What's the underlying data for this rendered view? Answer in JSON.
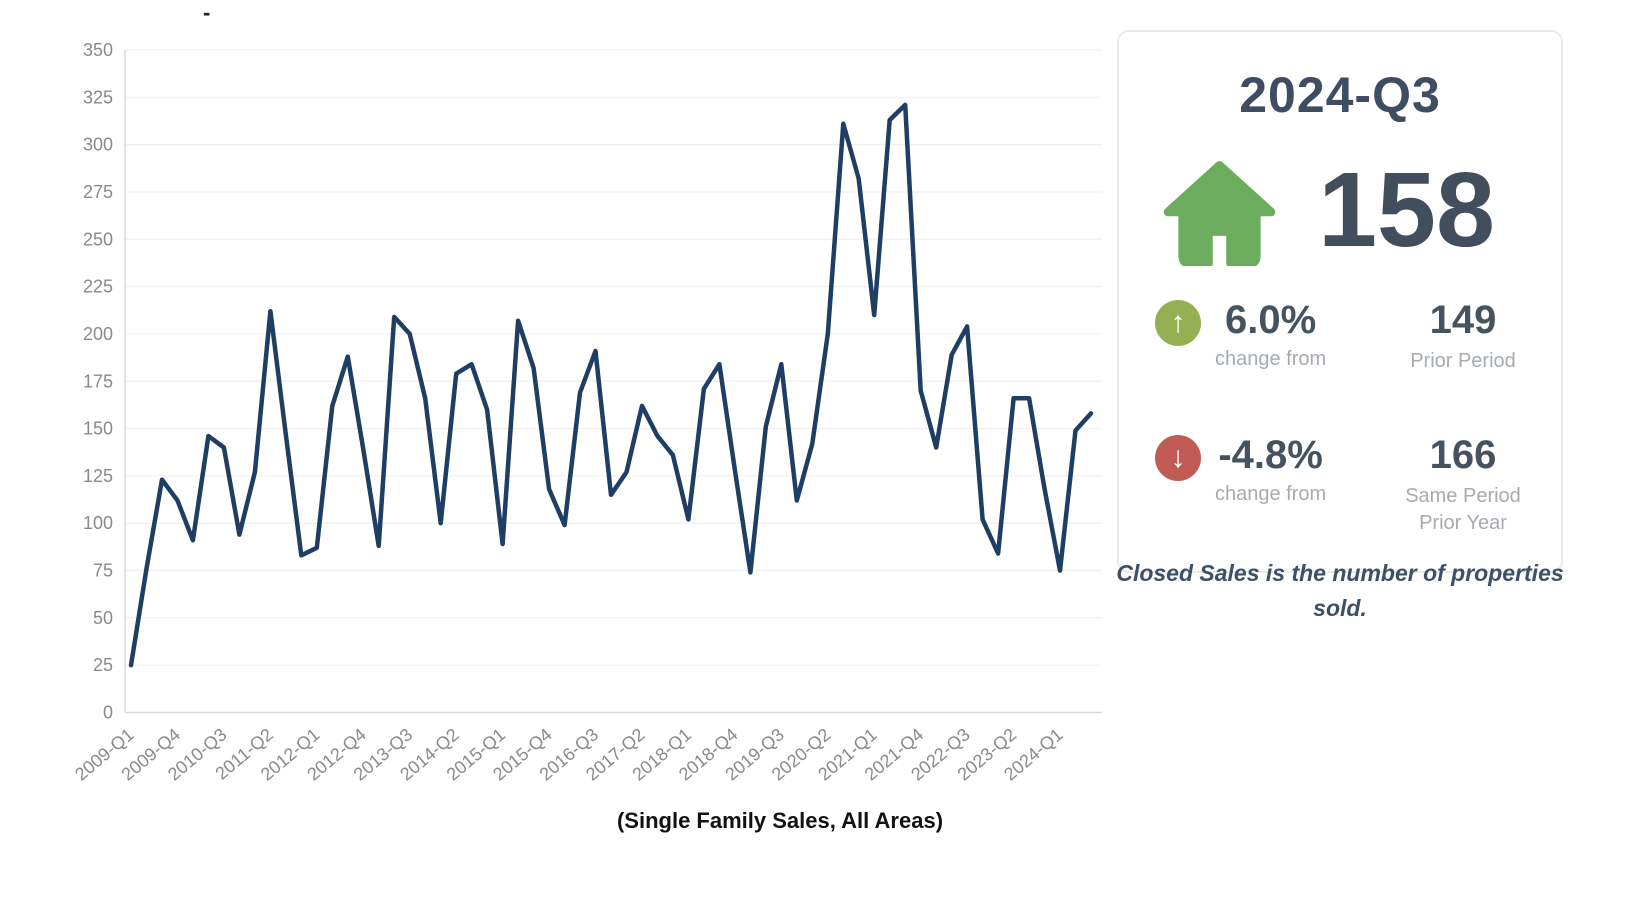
{
  "header": {
    "partial_title": "-"
  },
  "chart_data": {
    "type": "line",
    "title": "",
    "xlabel": "",
    "ylabel": "",
    "ylim": [
      0,
      350
    ],
    "y_ticks": [
      0,
      25,
      50,
      75,
      100,
      125,
      150,
      175,
      200,
      225,
      250,
      275,
      300,
      325,
      350
    ],
    "grid": true,
    "legend_position": "none",
    "line_color": "#1e3f63",
    "tick_color": "#8a8a8a",
    "label_every": 3,
    "categories": [
      "2009-Q1",
      "2009-Q2",
      "2009-Q3",
      "2009-Q4",
      "2010-Q1",
      "2010-Q2",
      "2010-Q3",
      "2010-Q4",
      "2011-Q1",
      "2011-Q2",
      "2011-Q3",
      "2011-Q4",
      "2012-Q1",
      "2012-Q2",
      "2012-Q3",
      "2012-Q4",
      "2013-Q1",
      "2013-Q2",
      "2013-Q3",
      "2013-Q4",
      "2014-Q1",
      "2014-Q2",
      "2014-Q3",
      "2014-Q4",
      "2015-Q1",
      "2015-Q2",
      "2015-Q3",
      "2015-Q4",
      "2016-Q1",
      "2016-Q2",
      "2016-Q3",
      "2016-Q4",
      "2017-Q1",
      "2017-Q2",
      "2017-Q3",
      "2017-Q4",
      "2018-Q1",
      "2018-Q2",
      "2018-Q3",
      "2018-Q4",
      "2019-Q1",
      "2019-Q2",
      "2019-Q3",
      "2019-Q4",
      "2020-Q1",
      "2020-Q2",
      "2020-Q3",
      "2020-Q4",
      "2021-Q1",
      "2021-Q2",
      "2021-Q3",
      "2021-Q4",
      "2022-Q1",
      "2022-Q2",
      "2022-Q3",
      "2022-Q4",
      "2023-Q1",
      "2023-Q2",
      "2023-Q3",
      "2023-Q4",
      "2024-Q1",
      "2024-Q2",
      "2024-Q3"
    ],
    "values": [
      25,
      76,
      123,
      112,
      91,
      146,
      140,
      94,
      127,
      212,
      147,
      83,
      87,
      162,
      188,
      139,
      88,
      209,
      200,
      166,
      100,
      179,
      184,
      160,
      89,
      207,
      182,
      118,
      99,
      169,
      191,
      115,
      127,
      162,
      146,
      136,
      102,
      171,
      184,
      128,
      74,
      151,
      184,
      112,
      142,
      200,
      311,
      282,
      210,
      313,
      321,
      170,
      140,
      189,
      204,
      102,
      84,
      166,
      166,
      118,
      75,
      149,
      158
    ]
  },
  "panel": {
    "title": "2024-Q3",
    "house_icon_color": "#6bad5c",
    "value": "158",
    "rows": [
      {
        "direction": "up",
        "circle_color": "#94b053",
        "arrow": "↑",
        "pct": "6.0%",
        "pct_sub": "change from",
        "num": "149",
        "num_sub": "Prior Period"
      },
      {
        "direction": "down",
        "circle_color": "#c05c55",
        "arrow": "↓",
        "pct": "-4.8%",
        "pct_sub": "change from",
        "num": "166",
        "num_sub": "Same Period Prior Year"
      }
    ],
    "note": "Closed Sales is the number of properties sold."
  },
  "caption": "(Single Family Sales, All Areas)"
}
